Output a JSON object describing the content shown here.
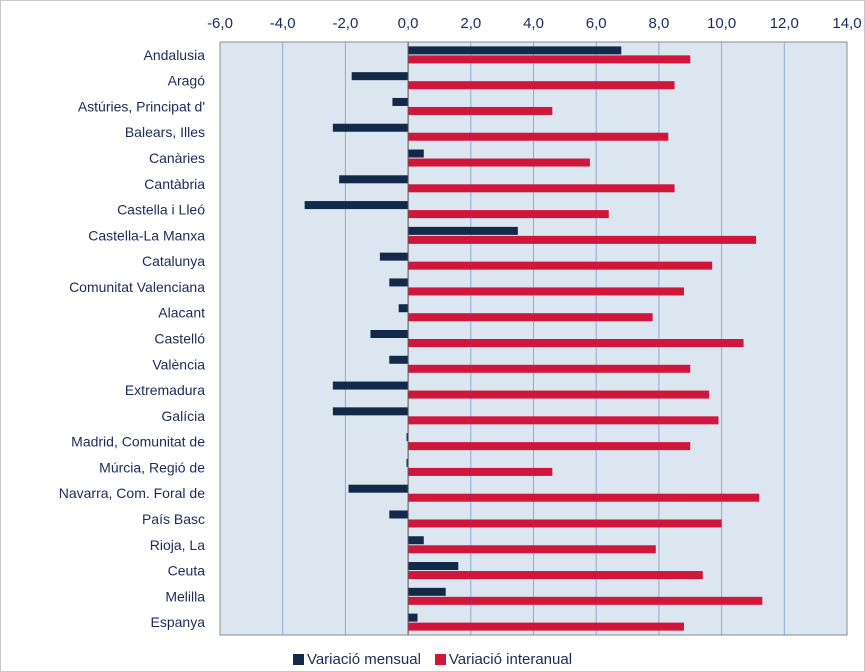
{
  "chart_data": {
    "type": "bar",
    "orientation": "horizontal",
    "title": "",
    "xlabel": "",
    "ylabel": "",
    "xlim": [
      -6,
      14
    ],
    "x_ticks": [
      "-6,0",
      "-4,0",
      "-2,0",
      "0,0",
      "2,0",
      "4,0",
      "6,0",
      "8,0",
      "10,0",
      "12,0",
      "14,0"
    ],
    "tick_values": [
      -6,
      -4,
      -2,
      0,
      2,
      4,
      6,
      8,
      10,
      12,
      14
    ],
    "x_axis_position": "top",
    "grid": true,
    "legend_position": "bottom",
    "plot_background": "#dce6f1",
    "categories": [
      "Andalusia",
      "Aragó",
      "Astúries, Principat d'",
      "Balears, Illes",
      "Canàries",
      "Cantàbria",
      "Castella i Lleó",
      "Castella-La Manxa",
      "Catalunya",
      "Comunitat Valenciana",
      "Alacant",
      "Castelló",
      "València",
      "Extremadura",
      "Galícia",
      "Madrid, Comunitat de",
      "Múrcia, Regió de",
      "Navarra, Com. Foral de",
      "País Basc",
      "Rioja, La",
      "Ceuta",
      "Melilla",
      "Espanya"
    ],
    "series": [
      {
        "name": "Variació mensual",
        "color": "#12294a",
        "values": [
          6.8,
          -1.8,
          -0.5,
          -2.4,
          0.5,
          -2.2,
          -3.3,
          3.5,
          -0.9,
          -0.6,
          -0.3,
          -1.2,
          -0.6,
          -2.4,
          -2.4,
          -0.05,
          -0.05,
          -1.9,
          -0.6,
          0.5,
          1.6,
          1.2,
          0.3
        ]
      },
      {
        "name": "Variació interanual",
        "color": "#d0163a",
        "values": [
          9.0,
          8.5,
          4.6,
          8.3,
          5.8,
          8.5,
          6.4,
          11.1,
          9.7,
          8.8,
          7.8,
          10.7,
          9.0,
          9.6,
          9.9,
          9.0,
          4.6,
          11.2,
          10.0,
          7.9,
          9.4,
          11.3,
          8.8
        ]
      }
    ]
  }
}
